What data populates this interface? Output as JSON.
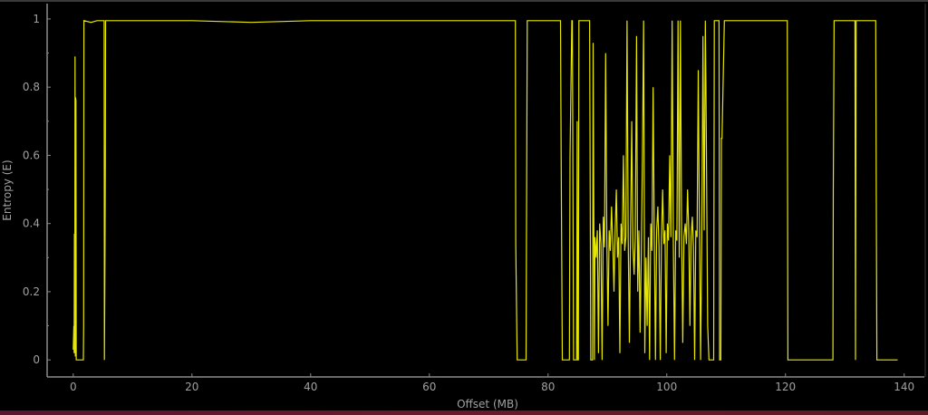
{
  "chart_data": {
    "type": "line",
    "title": "",
    "xlabel": "Offset (MB)",
    "ylabel": "Entropy (E)",
    "xlim": [
      -4.4,
      143.4
    ],
    "ylim": [
      -0.05,
      1.045
    ],
    "xticks": [
      0,
      20,
      40,
      60,
      80,
      100,
      120,
      140
    ],
    "xtick_labels": [
      "0",
      "20",
      "40",
      "60",
      "80",
      "100",
      "120",
      "140"
    ],
    "yticks": [
      0,
      0.2,
      0.4,
      0.6,
      0.8,
      1
    ],
    "ytick_labels": [
      "0",
      "0.2",
      "0.4",
      "0.6",
      "0.8",
      "1"
    ],
    "grid": false,
    "colors": {
      "background": "#000000",
      "line": "#e6e600",
      "axis": "#8a8a8a",
      "text": "#a0a0a0"
    },
    "series": [
      {
        "x": [
          0,
          0.1,
          0.15,
          0.2,
          0.25,
          0.3,
          0.35,
          0.4,
          0.45,
          0.5,
          0.6,
          0.7,
          0.8,
          0.95,
          1.7,
          1.75,
          1.8,
          3,
          4,
          5.2,
          5.25,
          5.35,
          5.4,
          5.45,
          5.5,
          20,
          30,
          40,
          50,
          60,
          70,
          74.5,
          74.55,
          74.8,
          76.3,
          76.35,
          76.5,
          82.1,
          82.2,
          82.4,
          83.6,
          83.7,
          84.0,
          84.1,
          84.3,
          84.8,
          84.9,
          85.0,
          85.1,
          85.2,
          87.0,
          87.2,
          87.5,
          87.6,
          87.8,
          87.9,
          88.1,
          88.3,
          88.5,
          88.7,
          88.9,
          89.1,
          89.3,
          89.5,
          89.7,
          89.9,
          90.1,
          90.3,
          90.5,
          90.7,
          90.9,
          91.1,
          91.3,
          91.5,
          91.7,
          91.9,
          92.1,
          92.3,
          92.5,
          92.7,
          92.9,
          93.1,
          93.3,
          93.5,
          93.7,
          93.9,
          94.1,
          94.3,
          94.5,
          94.7,
          94.9,
          95.1,
          95.3,
          95.5,
          95.7,
          95.9,
          96.1,
          96.3,
          96.5,
          96.7,
          96.9,
          97.1,
          97.3,
          97.5,
          97.7,
          97.9,
          98.1,
          98.3,
          98.5,
          98.7,
          98.9,
          99.1,
          99.3,
          99.5,
          99.7,
          99.9,
          100.1,
          100.3,
          100.5,
          100.7,
          100.9,
          101.1,
          101.3,
          101.5,
          101.7,
          101.9,
          102.1,
          102.3,
          102.5,
          102.7,
          102.9,
          103.1,
          103.3,
          103.5,
          103.7,
          103.9,
          104.1,
          104.3,
          104.5,
          104.7,
          104.9,
          105.1,
          105.3,
          105.5,
          105.7,
          105.9,
          106.1,
          106.3,
          106.5,
          106.6,
          106.9,
          107.1,
          107.9,
          108.0,
          108.2,
          108.8,
          108.9,
          109.1,
          109.2,
          109.3,
          109.7,
          115,
          120.3,
          120.4,
          128.0,
          128.05,
          128.2,
          131.7,
          131.8,
          131.9,
          135.2,
          135.3,
          135.4,
          138.9
        ],
        "y": [
          0.03,
          0.1,
          0.02,
          0.37,
          0.02,
          0.89,
          0.01,
          0.77,
          0.76,
          0.0,
          0.0,
          0.0,
          0.0,
          0.0,
          0.0,
          0.1,
          0.995,
          0.99,
          0.995,
          0.995,
          0.0,
          0.34,
          0.56,
          0.995,
          0.995,
          0.995,
          0.99,
          0.995,
          0.995,
          0.995,
          0.995,
          0.995,
          0.34,
          0.0,
          0.0,
          0.34,
          0.995,
          0.995,
          0.6,
          0.0,
          0.0,
          0.6,
          0.995,
          0.995,
          0.0,
          0.0,
          0.7,
          0.0,
          0.0,
          0.995,
          0.995,
          0.0,
          0.0,
          0.93,
          0.0,
          0.36,
          0.3,
          0.38,
          0.02,
          0.4,
          0.34,
          0.0,
          0.42,
          0.33,
          0.9,
          0.36,
          0.1,
          0.38,
          0.32,
          0.45,
          0.34,
          0.2,
          0.38,
          0.5,
          0.3,
          0.36,
          0.02,
          0.4,
          0.34,
          0.6,
          0.32,
          0.36,
          0.995,
          0.35,
          0.05,
          0.38,
          0.7,
          0.33,
          0.25,
          0.36,
          0.95,
          0.2,
          0.38,
          0.08,
          0.3,
          0.6,
          0.995,
          0.02,
          0.3,
          0.1,
          0.36,
          0.0,
          0.4,
          0.32,
          0.8,
          0.35,
          0.0,
          0.38,
          0.45,
          0.33,
          0.0,
          0.36,
          0.5,
          0.34,
          0.38,
          0.02,
          0.4,
          0.35,
          0.6,
          0.36,
          0.995,
          0.34,
          0.0,
          0.38,
          0.35,
          0.995,
          0.3,
          0.995,
          0.37,
          0.05,
          0.36,
          0.4,
          0.34,
          0.5,
          0.38,
          0.1,
          0.36,
          0.42,
          0.33,
          0.0,
          0.38,
          0.36,
          0.85,
          0.4,
          0.0,
          0.37,
          0.95,
          0.38,
          0.995,
          0.8,
          0.1,
          0.0,
          0.0,
          0.995,
          0.995,
          0.995,
          0.0,
          0.0,
          0.65,
          0.65,
          0.995,
          0.995,
          0.995,
          0.0,
          0.0,
          0.5,
          0.995,
          0.995,
          0.0,
          0.995,
          0.995,
          0.5,
          0.0,
          0.0
        ]
      }
    ]
  }
}
